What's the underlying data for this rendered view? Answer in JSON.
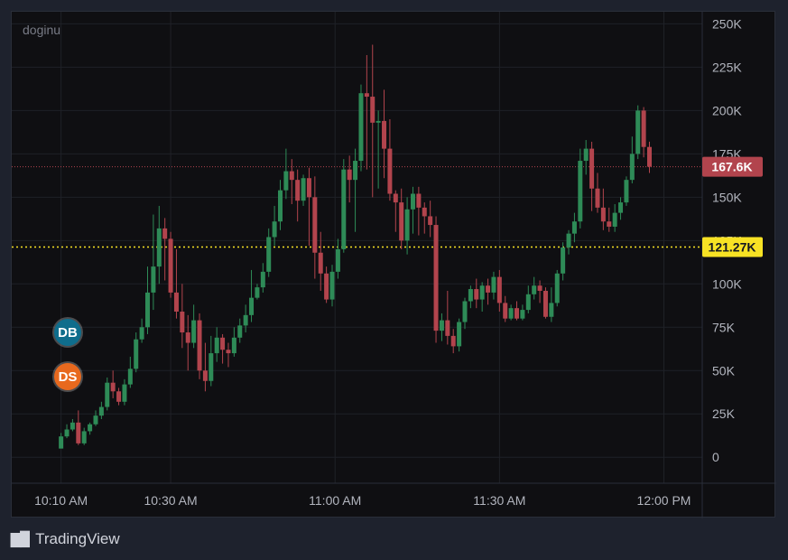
{
  "symbol": "doginu",
  "branding": "TradingView",
  "markers": {
    "db": "DB",
    "ds": "DS"
  },
  "price_labels": {
    "last": {
      "text": "167.6K",
      "value": 167.6,
      "color": "#b2444d"
    },
    "reference": {
      "text": "121.27K",
      "value": 121.27,
      "color": "#f7e224"
    }
  },
  "colors": {
    "up": "#26a69a",
    "up_fill": "#2e8b57",
    "down": "#b2444d",
    "grid": "#1f2127",
    "axis_text": "#b2b5be"
  },
  "chart_data": {
    "type": "candlestick",
    "y_unit": "K",
    "ylim": [
      -15,
      257
    ],
    "y_ticks": [
      0,
      25,
      50,
      75,
      100,
      125,
      150,
      175,
      200,
      225,
      250
    ],
    "y_tick_labels": [
      "0",
      "25K",
      "50K",
      "75K",
      "100K",
      "125K",
      "150K",
      "175K",
      "200K",
      "225K",
      "250K"
    ],
    "x_range_minutes": [
      "10:01",
      "12:07"
    ],
    "x_ticks": [
      "10:10",
      "10:30",
      "11:00",
      "11:30",
      "12:00"
    ],
    "x_tick_labels": [
      "10:10 AM",
      "10:30 AM",
      "11:00 AM",
      "11:30 AM",
      "12:00 PM"
    ],
    "ohlc": [
      [
        5,
        12,
        5,
        14
      ],
      [
        12,
        16,
        11,
        19
      ],
      [
        16,
        20,
        15,
        22
      ],
      [
        20,
        8,
        7,
        27
      ],
      [
        8,
        15,
        7,
        17
      ],
      [
        15,
        19,
        13,
        20
      ],
      [
        19,
        24,
        18,
        27
      ],
      [
        24,
        29,
        22,
        32
      ],
      [
        29,
        43,
        27,
        46
      ],
      [
        43,
        38,
        34,
        50
      ],
      [
        38,
        32,
        30,
        40
      ],
      [
        32,
        42,
        30,
        45
      ],
      [
        42,
        51,
        40,
        58
      ],
      [
        51,
        68,
        49,
        72
      ],
      [
        68,
        75,
        66,
        80
      ],
      [
        75,
        95,
        71,
        110
      ],
      [
        95,
        110,
        85,
        140
      ],
      [
        110,
        132,
        100,
        145
      ],
      [
        132,
        126,
        102,
        138
      ],
      [
        126,
        95,
        92,
        130
      ],
      [
        95,
        84,
        80,
        120
      ],
      [
        84,
        72,
        63,
        100
      ],
      [
        72,
        66,
        50,
        82
      ],
      [
        66,
        79,
        63,
        88
      ],
      [
        79,
        50,
        45,
        83
      ],
      [
        50,
        44,
        38,
        66
      ],
      [
        44,
        60,
        41,
        70
      ],
      [
        60,
        69,
        55,
        75
      ],
      [
        69,
        62,
        54,
        71
      ],
      [
        62,
        60,
        52,
        66
      ],
      [
        60,
        69,
        58,
        75
      ],
      [
        69,
        76,
        66,
        80
      ],
      [
        76,
        82,
        72,
        88
      ],
      [
        82,
        92,
        78,
        108
      ],
      [
        92,
        98,
        91,
        100
      ],
      [
        98,
        107,
        95,
        112
      ],
      [
        107,
        127,
        104,
        132
      ],
      [
        127,
        136,
        122,
        145
      ],
      [
        136,
        154,
        131,
        160
      ],
      [
        154,
        165,
        149,
        178
      ],
      [
        165,
        160,
        146,
        172
      ],
      [
        160,
        148,
        136,
        166
      ],
      [
        148,
        161,
        145,
        163
      ],
      [
        161,
        150,
        122,
        167
      ],
      [
        150,
        118,
        103,
        162
      ],
      [
        118,
        106,
        96,
        130
      ],
      [
        106,
        91,
        89,
        110
      ],
      [
        91,
        107,
        87,
        111
      ],
      [
        107,
        120,
        103,
        126
      ],
      [
        120,
        166,
        118,
        172
      ],
      [
        166,
        160,
        147,
        174
      ],
      [
        160,
        171,
        130,
        178
      ],
      [
        171,
        210,
        165,
        215
      ],
      [
        210,
        208,
        166,
        232
      ],
      [
        208,
        193,
        150,
        238
      ],
      [
        193,
        194,
        155,
        200
      ],
      [
        194,
        178,
        161,
        212
      ],
      [
        178,
        152,
        148,
        195
      ],
      [
        152,
        147,
        130,
        154
      ],
      [
        147,
        125,
        120,
        155
      ],
      [
        125,
        143,
        117,
        150
      ],
      [
        143,
        152,
        129,
        156
      ],
      [
        152,
        144,
        128,
        156
      ],
      [
        144,
        139,
        129,
        147
      ],
      [
        139,
        134,
        127,
        148
      ],
      [
        134,
        73,
        66,
        139
      ],
      [
        73,
        79,
        67,
        83
      ],
      [
        79,
        70,
        65,
        96
      ],
      [
        70,
        64,
        60,
        74
      ],
      [
        64,
        78,
        61,
        80
      ],
      [
        78,
        90,
        74,
        92
      ],
      [
        90,
        97,
        86,
        99
      ],
      [
        97,
        91,
        86,
        103
      ],
      [
        91,
        99,
        84,
        101
      ],
      [
        99,
        95,
        88,
        103
      ],
      [
        95,
        104,
        91,
        107
      ],
      [
        104,
        89,
        84,
        108
      ],
      [
        89,
        80,
        78,
        93
      ],
      [
        80,
        86,
        79,
        88
      ],
      [
        86,
        80,
        79,
        90
      ],
      [
        80,
        85,
        79,
        88
      ],
      [
        85,
        94,
        83,
        99
      ],
      [
        94,
        99,
        91,
        104
      ],
      [
        99,
        96,
        89,
        102
      ],
      [
        96,
        81,
        80,
        98
      ],
      [
        81,
        89,
        78,
        98
      ],
      [
        89,
        106,
        87,
        108
      ],
      [
        106,
        121,
        102,
        124
      ],
      [
        121,
        129,
        117,
        131
      ],
      [
        129,
        136,
        124,
        141
      ],
      [
        136,
        171,
        132,
        178
      ],
      [
        171,
        178,
        163,
        183
      ],
      [
        178,
        155,
        142,
        182
      ],
      [
        155,
        144,
        141,
        164
      ],
      [
        144,
        136,
        131,
        155
      ],
      [
        136,
        133,
        130,
        144
      ],
      [
        133,
        141,
        130,
        146
      ],
      [
        141,
        147,
        137,
        150
      ],
      [
        147,
        160,
        145,
        162
      ],
      [
        160,
        175,
        158,
        185
      ],
      [
        175,
        200,
        172,
        203
      ],
      [
        200,
        179,
        173,
        202
      ],
      [
        179,
        167.6,
        164,
        182
      ]
    ]
  }
}
